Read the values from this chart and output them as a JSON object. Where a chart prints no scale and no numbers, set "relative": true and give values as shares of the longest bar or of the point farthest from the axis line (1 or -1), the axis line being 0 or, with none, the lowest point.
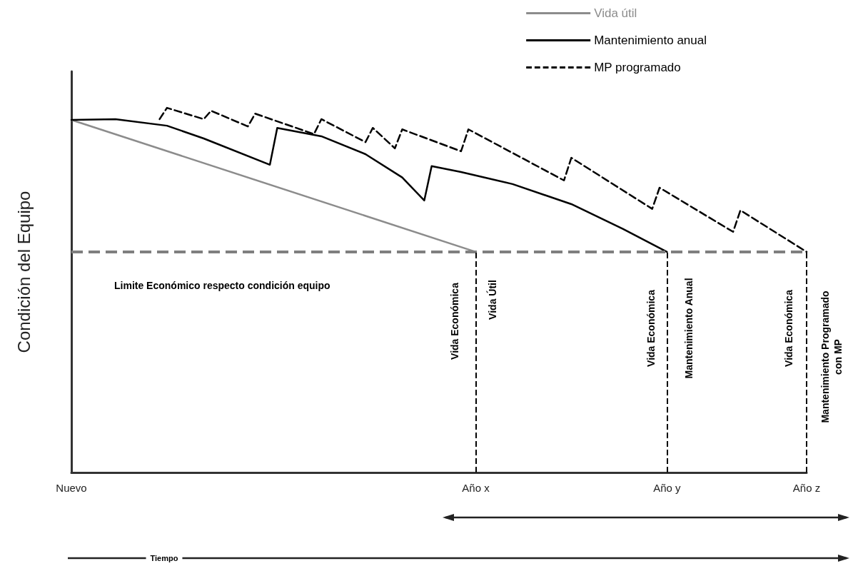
{
  "chart_data": {
    "type": "line",
    "relative": true,
    "ylabel": "Condición del Equipo",
    "categories": [
      "Nuevo",
      null,
      null,
      null,
      null,
      null,
      null,
      null,
      null,
      null,
      null,
      null,
      null,
      null,
      null,
      null,
      null,
      null,
      null,
      null,
      null,
      null,
      null,
      null,
      null,
      null,
      null,
      null,
      null,
      null,
      null,
      null,
      null,
      null,
      null,
      null,
      null,
      null,
      null,
      null,
      null,
      null,
      null,
      null,
      null,
      null,
      null,
      null,
      null,
      null,
      null,
      null,
      null,
      null,
      null,
      "Año x",
      null,
      null,
      null,
      null,
      null,
      null,
      null,
      null,
      null,
      null,
      null,
      null,
      null,
      null,
      null,
      null,
      null,
      null,
      null,
      null,
      null,
      null,
      null,
      null,
      null,
      "Año y",
      null,
      null,
      null,
      null,
      null,
      null,
      null,
      null,
      null,
      null,
      null,
      null,
      null,
      null,
      null,
      null,
      null,
      null,
      "Año z"
    ],
    "grid": false,
    "legend": "top right",
    "marker": "none",
    "series": [
      {
        "name": "Vida útil",
        "color": "#8c8c8c",
        "line_style": "solid",
        "values": [
          0.967,
          null,
          null,
          null,
          null,
          null,
          null,
          null,
          null,
          null,
          null,
          null,
          null,
          null,
          null,
          null,
          null,
          null,
          null,
          null,
          null,
          null,
          null,
          null,
          null,
          null,
          null,
          null,
          null,
          null,
          null,
          null,
          null,
          null,
          null,
          null,
          null,
          null,
          null,
          null,
          null,
          null,
          null,
          null,
          null,
          null,
          null,
          null,
          null,
          null,
          null,
          null,
          null,
          null,
          null,
          0.605,
          null,
          null,
          null,
          null,
          null,
          null,
          null,
          null,
          null,
          null,
          null,
          null,
          null,
          null,
          null,
          null,
          null,
          null,
          null,
          null,
          null,
          null,
          null,
          null,
          null,
          null,
          null,
          null,
          null,
          null,
          null,
          null,
          null,
          null,
          null,
          null,
          null,
          null,
          null,
          null,
          null,
          null,
          null,
          null,
          null
        ]
      },
      {
        "name": "Mantenimiento anual",
        "color": "#000000",
        "line_style": "solid",
        "values": [
          0.967,
          null,
          null,
          null,
          null,
          null,
          0.969,
          null,
          null,
          null,
          null,
          null,
          null,
          0.951,
          null,
          null,
          null,
          null,
          0.916,
          null,
          null,
          null,
          null,
          null,
          null,
          null,
          null,
          0.844,
          0.945,
          null,
          null,
          null,
          null,
          null,
          0.922,
          null,
          null,
          null,
          null,
          null,
          0.873,
          null,
          null,
          null,
          null,
          0.809,
          null,
          null,
          0.746,
          0.84,
          null,
          null,
          null,
          0.824,
          null,
          null,
          null,
          null,
          null,
          null,
          0.791,
          null,
          null,
          null,
          null,
          null,
          null,
          null,
          0.736,
          null,
          null,
          null,
          null,
          null,
          null,
          0.668,
          null,
          null,
          null,
          null,
          null,
          0.605,
          null,
          null,
          null,
          null,
          null,
          null,
          null,
          null,
          null,
          null,
          null,
          null,
          null,
          null,
          null,
          null,
          null,
          null,
          null
        ]
      },
      {
        "name": "MP programado",
        "color": "#000000",
        "line_style": "dashed",
        "values": [
          null,
          null,
          null,
          null,
          null,
          null,
          null,
          null,
          null,
          null,
          null,
          null,
          0.969,
          1.0,
          null,
          null,
          null,
          null,
          0.969,
          0.992,
          null,
          null,
          null,
          null,
          0.949,
          0.984,
          null,
          null,
          null,
          null,
          null,
          null,
          null,
          0.928,
          0.969,
          null,
          null,
          null,
          null,
          null,
          0.906,
          0.945,
          null,
          null,
          0.889,
          0.941,
          null,
          null,
          null,
          null,
          null,
          null,
          null,
          0.881,
          0.941,
          null,
          null,
          null,
          null,
          null,
          null,
          null,
          null,
          null,
          null,
          null,
          null,
          0.801,
          0.863,
          null,
          null,
          null,
          null,
          null,
          null,
          null,
          null,
          null,
          null,
          0.723,
          0.781,
          null,
          null,
          null,
          null,
          null,
          null,
          null,
          null,
          null,
          0.66,
          0.719,
          null,
          null,
          null,
          null,
          null,
          null,
          null,
          null,
          0.605
        ]
      }
    ],
    "ref_lines": [
      {
        "axis": "y",
        "value": 0.605,
        "label": "Limite Económico respecto condición equipo",
        "color": "#7f7f7f",
        "line_style": "dashed"
      },
      {
        "axis": "x",
        "value": "Año x",
        "color": "#000000",
        "line_style": "dashed"
      },
      {
        "axis": "x",
        "value": "Año y",
        "color": "#000000",
        "line_style": "dashed"
      },
      {
        "axis": "x",
        "value": "Año z",
        "color": "#000000",
        "line_style": "dashed"
      }
    ],
    "annotations": [
      "Vida Económica",
      "Vida Útil",
      "Vida Económica",
      "Mantenimiento Anual",
      "Vida Económica",
      "Mantenimiento Programado\ncon MP",
      "Tiempo"
    ]
  }
}
